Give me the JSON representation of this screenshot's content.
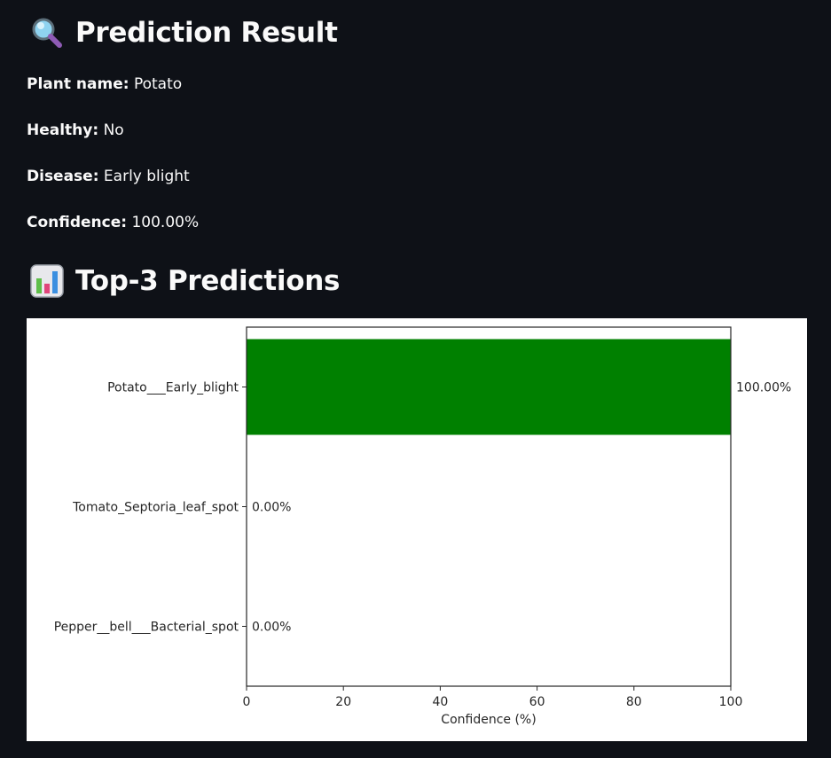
{
  "result": {
    "heading": "Prediction Result",
    "heading_icon": "magnifier-icon",
    "fields": [
      {
        "key": "Plant name:",
        "value": "Potato"
      },
      {
        "key": "Healthy:",
        "value": "No"
      },
      {
        "key": "Disease:",
        "value": "Early blight"
      },
      {
        "key": "Confidence:",
        "value": "100.00%"
      }
    ]
  },
  "top3": {
    "heading": "Top-3 Predictions",
    "heading_icon": "bar-chart-icon"
  },
  "chart_data": {
    "type": "bar",
    "orientation": "horizontal",
    "categories": [
      "Potato___Early_blight",
      "Tomato_Septoria_leaf_spot",
      "Pepper__bell___Bacterial_spot"
    ],
    "values": [
      100.0,
      0.0,
      0.0
    ],
    "data_labels": [
      "100.00%",
      "0.00%",
      "0.00%"
    ],
    "xlabel": "Confidence (%)",
    "ylabel": "",
    "xlim": [
      0,
      100
    ],
    "xticks": [
      "0",
      "20",
      "40",
      "60",
      "80",
      "100"
    ],
    "grid": false,
    "bar_color": "#008000"
  },
  "colors": {
    "background": "#0e1117",
    "text": "#fafafa",
    "chart_background": "#ffffff"
  }
}
